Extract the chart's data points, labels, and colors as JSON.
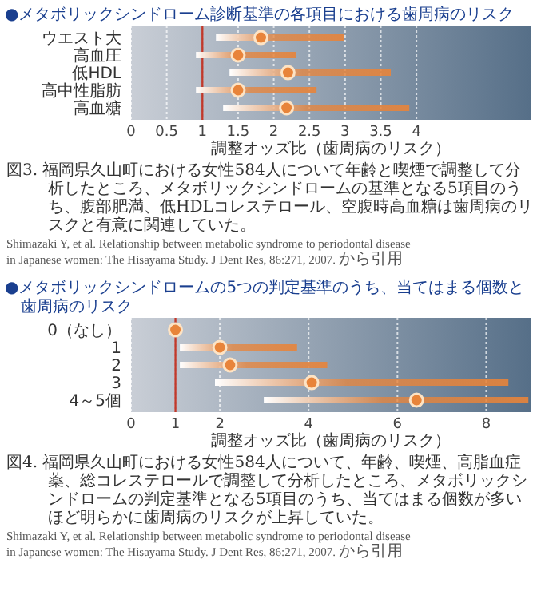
{
  "chart_data": [
    {
      "type": "scatter",
      "orientation": "horizontal",
      "title": "●メタボリックシンドローム診断基準の各項目における歯周病のリスク",
      "xlabel": "調整オッズ比（歯周病のリスク）",
      "categories": [
        "ウエスト大",
        "高血圧",
        "低HDL",
        "高中性脂肪",
        "高血糖"
      ],
      "series": [
        {
          "color": "#e8843a",
          "values": [
            1.82,
            1.5,
            2.2,
            1.5,
            2.18
          ],
          "errors": [
            [
              1.19,
              2.99
            ],
            [
              0.91,
              2.31
            ],
            [
              1.38,
              3.64
            ],
            [
              0.91,
              2.6
            ],
            [
              1.29,
              3.9
            ]
          ]
        }
      ],
      "xlim": [
        0,
        5.6
      ],
      "xticks": [
        0,
        0.5,
        1,
        1.5,
        2,
        2.5,
        3,
        3.5,
        4
      ],
      "grid": "x",
      "marker": "circle",
      "ref_lines": [
        {
          "axis": "x",
          "value": 1,
          "color": "#c0392b"
        }
      ],
      "annotations": [
        "図3. 福岡県久山町における女性584人について年齢と喫煙で調整して分析したところ、メタボリックシンドロームの基準となる5項目のうち、腹部肥満、低HDLコレステロール、空腹時高血糖は歯周病のリスクと有意に関連していた。",
        "Shimazaki Y, et al. Relationship between metabolic syndrome to periodontal disease in Japanese women: The Hisayama Study. J Dent Res, 86:271, 2007. から引用"
      ]
    },
    {
      "type": "scatter",
      "orientation": "horizontal",
      "title": "●メタボリックシンドロームの5つの判定基準のうち、当てはまる個数と歯周病のリスク",
      "xlabel": "調整オッズ比（歯周病のリスク）",
      "categories": [
        "0（なし）",
        "1",
        "2",
        "3",
        "4～5個"
      ],
      "series": [
        {
          "color": "#e8843a",
          "values": [
            1.0,
            2.0,
            2.23,
            4.07,
            6.43
          ],
          "errors": [
            null,
            [
              1.1,
              3.74
            ],
            [
              1.1,
              4.42
            ],
            [
              1.89,
              8.5
            ],
            [
              2.99,
              8.95
            ]
          ]
        }
      ],
      "xlim": [
        0,
        9
      ],
      "xticks": [
        0,
        1,
        2,
        4,
        6,
        8
      ],
      "grid": "x",
      "marker": "circle",
      "ref_lines": [
        {
          "axis": "x",
          "value": 1,
          "color": "#c0392b"
        }
      ],
      "annotations": [
        "図4. 福岡県久山町における女性584人について、年齢、喫煙、高脂血症薬、総コレステロールで調整して分析したところ、メタボリックシンドロームの判定基準となる5項目のうち、当てはまる個数が多いほど明らかに歯周病のリスクが上昇していた。",
        "Shimazaki Y, et al. Relationship between metabolic syndrome to periodontal disease in Japanese women: The Hisayama Study. J Dent Res, 86:271, 2007. から引用"
      ]
    }
  ]
}
